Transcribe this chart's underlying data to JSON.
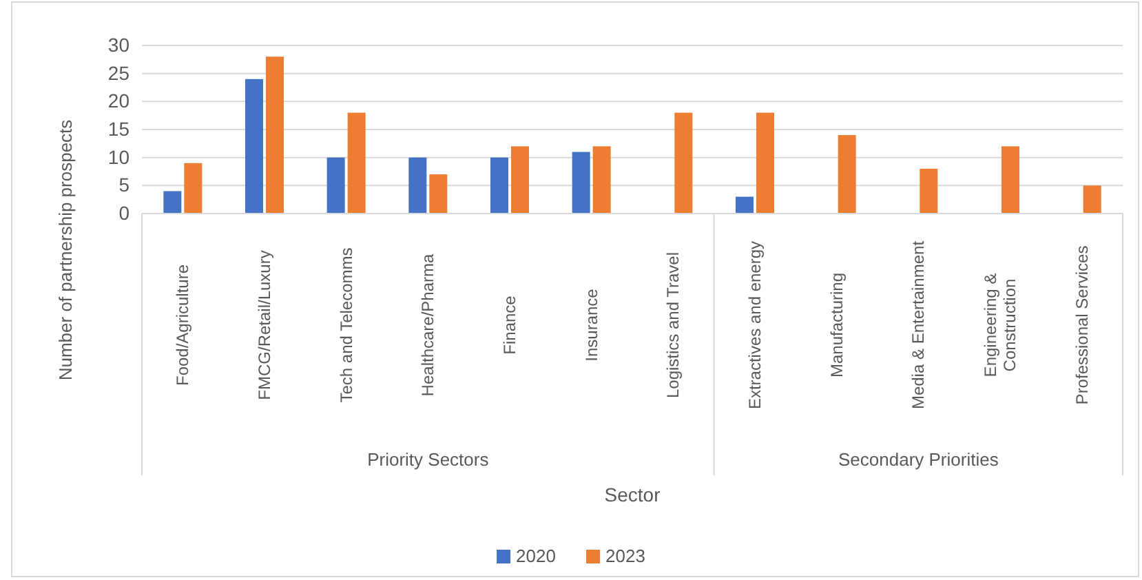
{
  "chart_data": {
    "type": "bar",
    "xlabel": "Sector",
    "ylabel": "Number of partnership prospects",
    "categories": [
      "Food/Agriculture",
      "FMCG/Retail/Luxury",
      "Tech and Telecomms",
      "Healthcare/Pharma",
      "Finance",
      "Insurance",
      "Logistics and Travel",
      "Extractives and energy",
      "Manufacturing",
      "Media & Entertainment",
      "Engineering & Construction",
      "Professional Services"
    ],
    "series": [
      {
        "name": "2020",
        "color": "#4472c4",
        "values": [
          4,
          24,
          10,
          10,
          10,
          11,
          null,
          3,
          null,
          null,
          null,
          null
        ]
      },
      {
        "name": "2023",
        "color": "#ed7d31",
        "values": [
          9,
          28,
          18,
          7,
          12,
          12,
          18,
          18,
          14,
          8,
          12,
          5
        ]
      }
    ],
    "annotations": [
      "Priority Sectors",
      "Secondary Priorities"
    ],
    "ylim": [
      0,
      30
    ],
    "yticks": [
      0,
      5,
      10,
      15,
      20,
      25,
      30
    ],
    "grid": "y",
    "legend": "bottom"
  }
}
